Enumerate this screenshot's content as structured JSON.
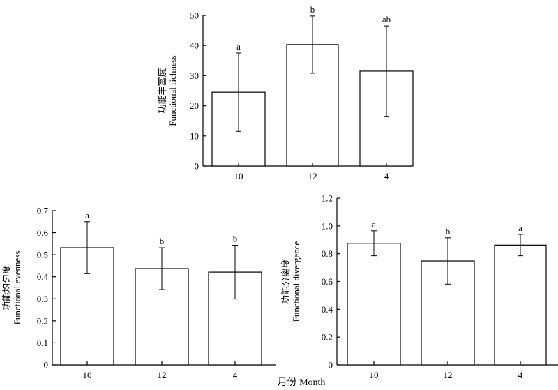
{
  "chart_data": [
    {
      "type": "bar",
      "categories": [
        "10",
        "12",
        "4"
      ],
      "values": [
        24.5,
        40.3,
        31.5
      ],
      "errors": [
        13,
        9.5,
        15
      ],
      "significance": [
        "a",
        "b",
        "ab"
      ],
      "ylabel_zh": "功能丰富度",
      "ylabel_en": "Functional richness",
      "ylim": [
        0,
        50
      ],
      "yticks": [
        "0",
        "10",
        "20",
        "30",
        "40",
        "50"
      ]
    },
    {
      "type": "bar",
      "categories": [
        "10",
        "12",
        "4"
      ],
      "values": [
        0.532,
        0.437,
        0.421
      ],
      "errors": [
        0.118,
        0.095,
        0.122
      ],
      "significance": [
        "a",
        "b",
        "b"
      ],
      "ylabel_zh": "功能均匀度",
      "ylabel_en": "Functional evenness",
      "ylim": [
        0,
        0.7
      ],
      "yticks": [
        "0",
        "0.1",
        "0.2",
        "0.3",
        "0.4",
        "0.5",
        "0.6",
        "0.7"
      ]
    },
    {
      "type": "bar",
      "categories": [
        "10",
        "12",
        "4"
      ],
      "values": [
        0.875,
        0.748,
        0.862
      ],
      "errors": [
        0.09,
        0.167,
        0.077
      ],
      "significance": [
        "a",
        "b",
        "a"
      ],
      "ylabel_zh": "功能分离度",
      "ylabel_en": "Functional divergence",
      "ylim": [
        0,
        1.2
      ],
      "yticks": [
        "0",
        "0.2",
        "0.4",
        "0.6",
        "0.8",
        "1.0",
        "1.2"
      ]
    }
  ],
  "shared_xlabel": "月份 Month"
}
